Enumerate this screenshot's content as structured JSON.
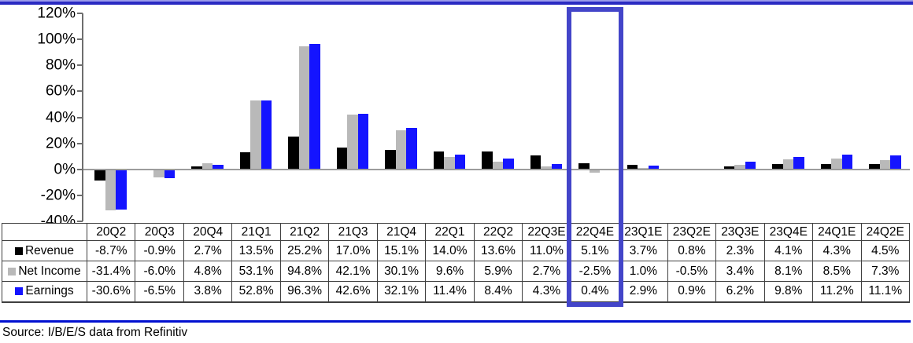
{
  "chart_data": {
    "type": "bar",
    "title": "",
    "categories": [
      "20Q2",
      "20Q3",
      "20Q4",
      "21Q1",
      "21Q2",
      "21Q3",
      "21Q4",
      "22Q1",
      "22Q2",
      "22Q3E",
      "22Q4E",
      "23Q1E",
      "23Q2E",
      "23Q3E",
      "23Q4E",
      "24Q1E",
      "24Q2E"
    ],
    "series": [
      {
        "name": "Revenue",
        "color": "#000000",
        "values": [
          -8.7,
          -0.9,
          2.7,
          13.5,
          25.2,
          17.0,
          15.1,
          14.0,
          13.6,
          11.0,
          5.1,
          3.7,
          0.8,
          2.3,
          4.1,
          4.3,
          4.5
        ]
      },
      {
        "name": "Net Income",
        "color": "#b9b9b9",
        "values": [
          -31.4,
          -6.0,
          4.8,
          53.1,
          94.8,
          42.1,
          30.1,
          9.6,
          5.9,
          2.7,
          -2.5,
          1.0,
          -0.5,
          3.4,
          8.1,
          8.5,
          7.3
        ]
      },
      {
        "name": "Earnings",
        "color": "#1414ff",
        "values": [
          -30.6,
          -6.5,
          3.8,
          52.8,
          96.3,
          42.6,
          32.1,
          11.4,
          8.4,
          4.3,
          0.4,
          2.9,
          0.9,
          6.2,
          9.8,
          11.2,
          11.1
        ]
      }
    ],
    "y_ticks": [
      120,
      100,
      80,
      60,
      40,
      20,
      0,
      -20,
      -40
    ],
    "y_tick_labels": [
      "120%",
      "100%",
      "80%",
      "60%",
      "40%",
      "20%",
      "0%",
      "-20%",
      "-40%"
    ],
    "ylim": [
      -40,
      120
    ],
    "value_suffix": "%",
    "grid": false,
    "legend_position": "table-left-column",
    "highlighted_category": "22Q4E",
    "highlight_color": "#4345c9"
  },
  "colors": {
    "revenue_bar": "#000000",
    "net_income_bar": "#b9b9b9",
    "earnings_bar": "#1414ff",
    "highlight_box": "#4345c9",
    "zero_line": "#9c9c9c",
    "axis": "#6e6e6e",
    "top_rule": "#2a2ac2",
    "bottom_rule": "#000fd0"
  },
  "source": {
    "text": "Source: I/B/E/S data from Refinitiv"
  }
}
